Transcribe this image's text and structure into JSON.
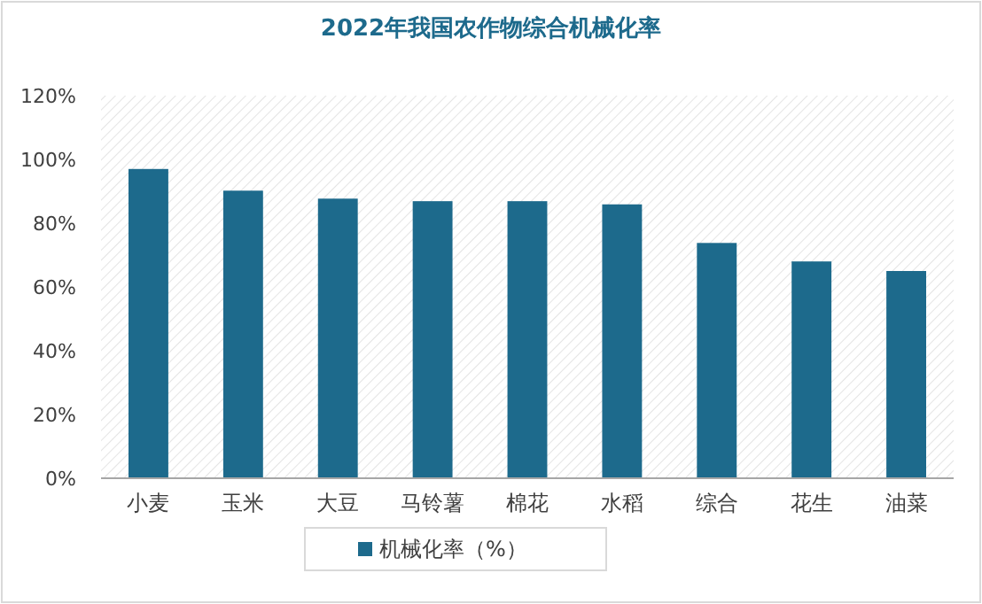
{
  "chart_data": {
    "type": "bar",
    "title": "2022年我国农作物综合机械化率",
    "categories": [
      "小麦",
      "玉米",
      "大豆",
      "马铃薯",
      "棉花",
      "水稻",
      "综合",
      "花生",
      "油菜"
    ],
    "series": [
      {
        "name": "机械化率（%）",
        "color": "#1d6a8c",
        "values": [
          97,
          90.2,
          87.7,
          86.9,
          86.9,
          85.9,
          73.8,
          68,
          65
        ]
      }
    ],
    "ylim": [
      0,
      120
    ],
    "yticks": [
      {
        "value": 0,
        "label": "0%"
      },
      {
        "value": 20,
        "label": "20%"
      },
      {
        "value": 40,
        "label": "40%"
      },
      {
        "value": 60,
        "label": "60%"
      },
      {
        "value": 80,
        "label": "80%"
      },
      {
        "value": 100,
        "label": "100%"
      },
      {
        "value": 120,
        "label": "120%"
      }
    ],
    "legend": "bottom"
  }
}
